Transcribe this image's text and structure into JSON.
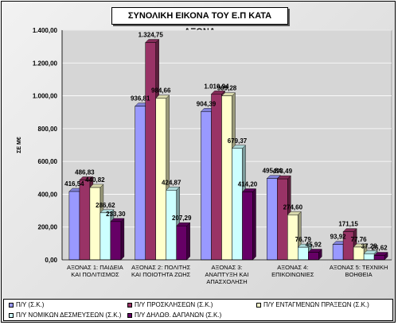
{
  "chart_data": {
    "type": "bar",
    "title": "ΣΥΝΟΛΙΚΗ ΕΙΚΟΝΑ ΤΟΥ Ε.Π ΚΑΤΑ ΑΞΟΝΑ",
    "ylabel": "ΣΕ Μ€",
    "xlabel": "",
    "ylim": [
      0,
      1400
    ],
    "yticks": [
      "0,00",
      "200,00",
      "400,00",
      "600,00",
      "800,00",
      "1.000,00",
      "1.200,00",
      "1.400,00"
    ],
    "grid": true,
    "legend_position": "bottom",
    "categories": [
      [
        "ΑΞΟΝΑΣ 1: ΠΑΙΔΕΙΑ",
        "ΚΑΙ ΠΟΛΙΤΙΣΜΟΣ"
      ],
      [
        "ΑΞΟΝΑΣ 2: ΠΟΛΙΤΗΣ",
        "ΚΑΙ ΠΟΙΟΤΗΤΑ ΖΩΗΣ"
      ],
      [
        "ΑΞΟΝΑΣ 3:",
        "ΑΝΑΠΤΥΞΗ ΚΑΙ",
        "ΑΠΑΣΧΟΛΗΣΗ"
      ],
      [
        "ΑΞΟΝΑΣ 4:",
        "ΕΠΙΚΟΙΝΩΝΙΕΣ"
      ],
      [
        "ΑΞΟΝΑΣ 5: ΤΕΧΝΙΚΗ",
        "ΒΟΗΘΕΙΑ"
      ]
    ],
    "series": [
      {
        "name": "Π/Υ (Σ.Κ.)",
        "color": "#9999ff",
        "values": [
          416.54,
          936.81,
          904.39,
          495.84,
          93.92
        ],
        "labels": [
          "416,54",
          "936,81",
          "904,39",
          "495,84",
          "93,92"
        ]
      },
      {
        "name": "Π/Υ ΠΡΟΣΚΛΗΣΕΩΝ (Σ.Κ.)",
        "color": "#993366",
        "values": [
          486.83,
          1324.75,
          1010.94,
          493.49,
          171.15
        ],
        "labels": [
          "486,83",
          "1.324,75",
          "1.010,94",
          "493,49",
          "171,15"
        ]
      },
      {
        "name": "Π/Υ ΕΝΤΑΓΜΕΝΩΝ ΠΡΑΞΕΩΝ (Σ.Κ.)",
        "color": "#ffffcc",
        "values": [
          440.82,
          984.66,
          999.28,
          274.6,
          77.76
        ],
        "labels": [
          "440,82",
          "984,66",
          "999,28",
          "274,60",
          "77,76"
        ]
      },
      {
        "name": "Π/Υ ΝΟΜΙΚΩΝ ΔΕΣΜΕΥΣΕΩΝ  (Σ.Κ.)",
        "color": "#ccffff",
        "values": [
          286.62,
          424.87,
          679.37,
          76.79,
          37.28
        ],
        "labels": [
          "286,62",
          "424,87",
          "679,37",
          "76,79",
          "37,28"
        ]
      },
      {
        "name": "Π/Υ ΔΗΛΩΘ. ΔΑΠΑΝΩΝ (Σ.Κ.)",
        "color": "#660066",
        "values": [
          233.3,
          207.29,
          414.2,
          45.92,
          26.62
        ],
        "labels": [
          "233,30",
          "207,29",
          "414,20",
          "45,92",
          "26,62"
        ]
      }
    ]
  }
}
